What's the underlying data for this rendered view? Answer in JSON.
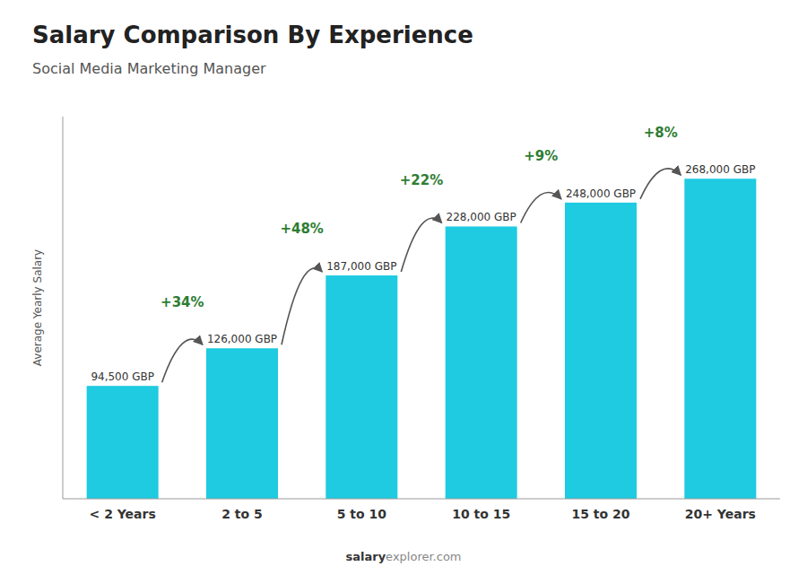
{
  "chart_data": {
    "type": "bar",
    "title": "Salary Comparison By Experience",
    "subtitle": "Social Media Marketing Manager",
    "categories": [
      "< 2 Years",
      "2 to 5",
      "5 to 10",
      "10 to 15",
      "15 to 20",
      "20+ Years"
    ],
    "values": [
      94500,
      126000,
      187000,
      228000,
      248000,
      268000
    ],
    "value_labels": [
      "94,500 GBP",
      "126,000 GBP",
      "187,000 GBP",
      "228,000 GBP",
      "248,000 GBP",
      "268,000 GBP"
    ],
    "data_labels": true,
    "annotations": [
      "+34%",
      "+48%",
      "+22%",
      "+9%",
      "+8%"
    ],
    "ylabel": "Average Yearly Salary",
    "footer": [
      "salary",
      "explorer.com"
    ],
    "color": "#1ecbe1",
    "ylim": [
      0,
      320000
    ],
    "tick_labels": "x"
  }
}
